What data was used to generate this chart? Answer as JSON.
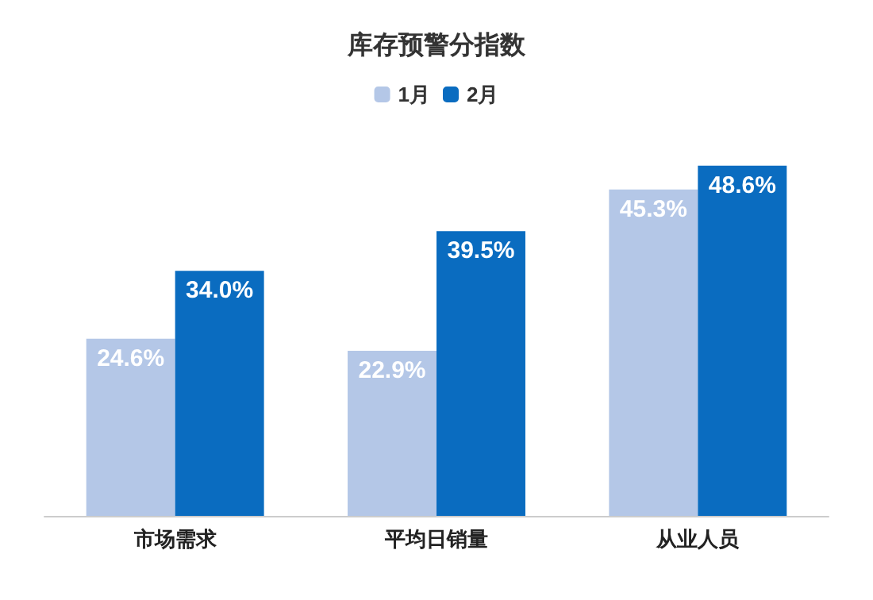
{
  "chart_data": {
    "type": "bar",
    "title": "库存预警分指数",
    "categories": [
      "市场需求",
      "平均日销量",
      "从业人员"
    ],
    "series": [
      {
        "name": "1月",
        "color": "#b4c7e7",
        "values": [
          24.6,
          22.9,
          45.3
        ],
        "value_labels": [
          "24.6%",
          "22.9%",
          "45.3%"
        ]
      },
      {
        "name": "2月",
        "color": "#0a6cc0",
        "values": [
          34.0,
          39.5,
          48.6
        ],
        "value_labels": [
          "34.0%",
          "39.5%",
          "48.6%"
        ]
      }
    ],
    "legend": "top"
  }
}
